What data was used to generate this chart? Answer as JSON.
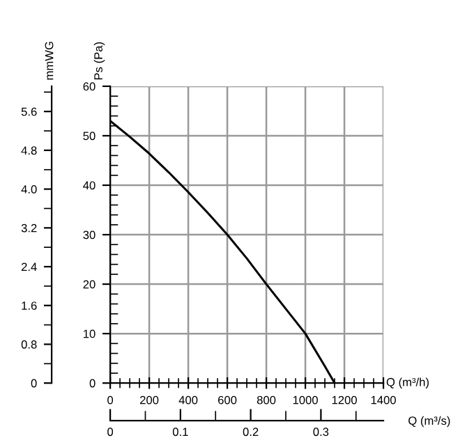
{
  "chart_data": {
    "type": "line",
    "xlabel": "Q (m³/h)",
    "ylabel": "Ps (Pa)",
    "y2label": "mmWG",
    "x2label": "Q (m³/s)",
    "x": [
      0,
      100,
      200,
      300,
      400,
      500,
      600,
      700,
      800,
      900,
      1000,
      1100,
      1150
    ],
    "series": [
      {
        "color": "#000000",
        "values": [
          53,
          49.8,
          46.4,
          42.6,
          38.6,
          34.4,
          30,
          25.2,
          20,
          15,
          10,
          3.4,
          0
        ]
      }
    ],
    "xlim": [
      0,
      1400
    ],
    "xticks": [
      0,
      200,
      400,
      600,
      800,
      1000,
      1200,
      1400
    ],
    "ylim": [
      0,
      60
    ],
    "yticks": [
      0,
      10,
      20,
      30,
      40,
      50,
      60
    ],
    "y2lim": [
      0,
      6.12
    ],
    "y2ticks": [
      {
        "value": 0,
        "label": "0"
      },
      {
        "value": 0.8,
        "label": "0.8"
      },
      {
        "value": 1.6,
        "label": "1.6"
      },
      {
        "value": 2.4,
        "label": "2.4"
      },
      {
        "value": 3.2,
        "label": "3.2"
      },
      {
        "value": 4.0,
        "label": "4.0"
      },
      {
        "value": 4.8,
        "label": "4.8"
      },
      {
        "value": 5.6,
        "label": "5.6"
      }
    ],
    "x2lim": [
      0,
      0.389
    ],
    "x2ticks": [
      0,
      0.1,
      0.2,
      0.3
    ],
    "grid": true,
    "marker": "none",
    "line_style": "solid",
    "legend": false
  }
}
